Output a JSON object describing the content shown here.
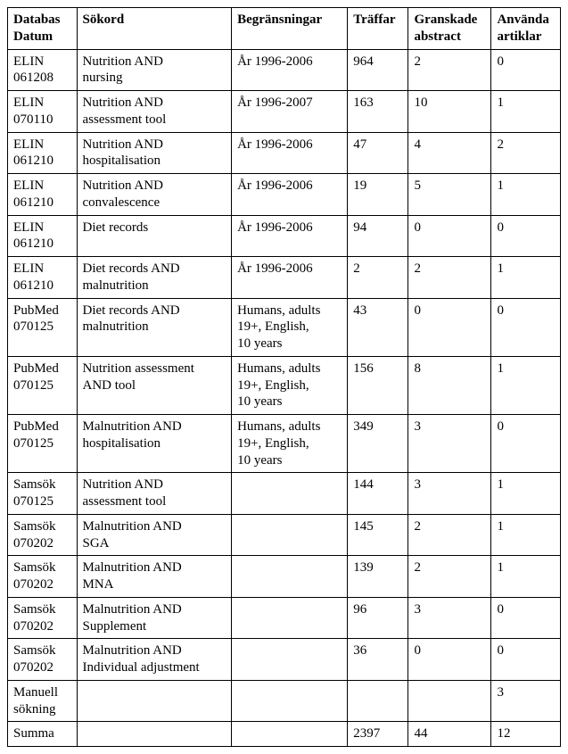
{
  "table": {
    "columns": [
      {
        "line1": "Databas",
        "line2": "Datum"
      },
      {
        "line1": "Sökord",
        "line2": ""
      },
      {
        "line1": "Begränsningar",
        "line2": ""
      },
      {
        "line1": "Träffar",
        "line2": ""
      },
      {
        "line1": "Granskade",
        "line2": "abstract"
      },
      {
        "line1": "Använda",
        "line2": "artiklar"
      }
    ],
    "rows": [
      {
        "db1": "ELIN",
        "db2": "061208",
        "sok1": "Nutrition AND",
        "sok2": "nursing",
        "beg1": "År 1996-2006",
        "beg2": "",
        "tr": "964",
        "gr": "2",
        "an": "0"
      },
      {
        "db1": "ELIN",
        "db2": "070110",
        "sok1": "Nutrition AND",
        "sok2": "assessment tool",
        "beg1": "År 1996-2007",
        "beg2": "",
        "tr": "163",
        "gr": "10",
        "an": "1"
      },
      {
        "db1": "ELIN",
        "db2": "061210",
        "sok1": "Nutrition AND",
        "sok2": "hospitalisation",
        "beg1": "År 1996-2006",
        "beg2": "",
        "tr": "47",
        "gr": "4",
        "an": "2"
      },
      {
        "db1": "ELIN",
        "db2": "061210",
        "sok1": "Nutrition AND",
        "sok2": "convalescence",
        "beg1": "År 1996-2006",
        "beg2": "",
        "tr": "19",
        "gr": "5",
        "an": "1"
      },
      {
        "db1": "ELIN",
        "db2": "061210",
        "sok1": "Diet records",
        "sok2": "",
        "beg1": "År 1996-2006",
        "beg2": "",
        "tr": "94",
        "gr": "0",
        "an": "0"
      },
      {
        "db1": "ELIN",
        "db2": "061210",
        "sok1": "Diet records AND",
        "sok2": "malnutrition",
        "beg1": "År 1996-2006",
        "beg2": "",
        "tr": "2",
        "gr": "2",
        "an": "1"
      },
      {
        "db1": "PubMed",
        "db2": "070125",
        "sok1": "Diet records AND",
        "sok2": "malnutrition",
        "beg1": "Humans, adults",
        "beg2": "19+, English,",
        "beg3": "10 years",
        "tr": "43",
        "gr": "0",
        "an": "0"
      },
      {
        "db1": "PubMed",
        "db2": "070125",
        "sok1": "Nutrition assessment",
        "sok2": "AND tool",
        "beg1": "Humans, adults",
        "beg2": "19+, English,",
        "beg3": "10 years",
        "tr": "156",
        "gr": "8",
        "an": "1"
      },
      {
        "db1": "PubMed",
        "db2": "070125",
        "sok1": "Malnutrition AND",
        "sok2": "hospitalisation",
        "beg1": "Humans, adults",
        "beg2": "19+, English,",
        "beg3": "10 years",
        "tr": "349",
        "gr": "3",
        "an": "0"
      },
      {
        "db1": "Samsök",
        "db2": "070125",
        "sok1": "Nutrition AND",
        "sok2": "assessment tool",
        "beg1": "",
        "beg2": "",
        "tr": "144",
        "gr": "3",
        "an": "1"
      },
      {
        "db1": "Samsök",
        "db2": "070202",
        "sok1": "Malnutrition AND",
        "sok2": "SGA",
        "beg1": "",
        "beg2": "",
        "tr": "145",
        "gr": "2",
        "an": "1"
      },
      {
        "db1": "Samsök",
        "db2": "070202",
        "sok1": "Malnutrition AND",
        "sok2": "MNA",
        "beg1": "",
        "beg2": "",
        "tr": "139",
        "gr": "2",
        "an": "1"
      },
      {
        "db1": "Samsök",
        "db2": "070202",
        "sok1": "Malnutrition AND",
        "sok2": "Supplement",
        "beg1": "",
        "beg2": "",
        "tr": "96",
        "gr": "3",
        "an": "0"
      },
      {
        "db1": "Samsök",
        "db2": "070202",
        "sok1": "Malnutrition AND",
        "sok2": "Individual adjustment",
        "beg1": "",
        "beg2": "",
        "tr": "36",
        "gr": "0",
        "an": "0"
      },
      {
        "db1": "Manuell",
        "db2": "sökning",
        "sok1": "",
        "sok2": "",
        "beg1": "",
        "beg2": "",
        "tr": "",
        "gr": "",
        "an": "3"
      },
      {
        "db1": "Summa",
        "db2": "",
        "sok1": "",
        "sok2": "",
        "beg1": "",
        "beg2": "",
        "tr": "2397",
        "gr": "44",
        "an": "12"
      }
    ]
  }
}
